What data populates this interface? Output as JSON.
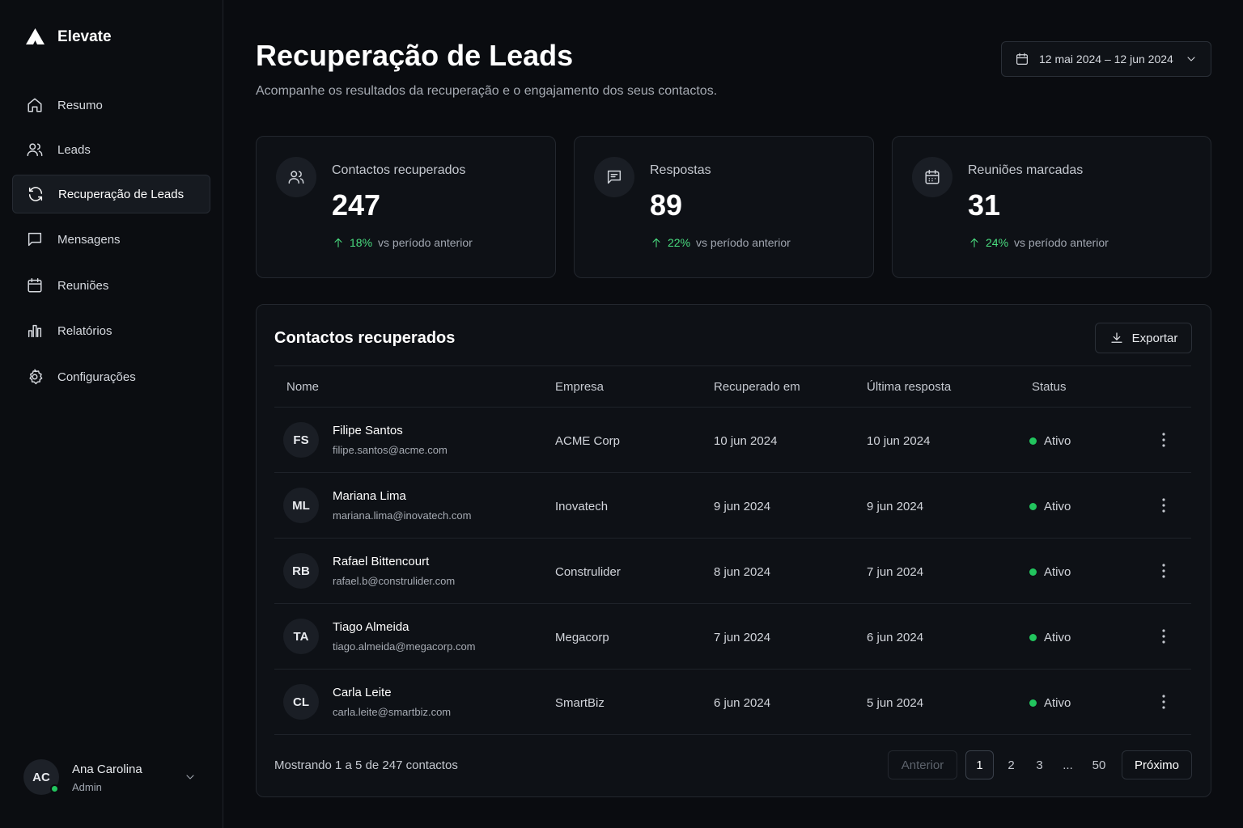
{
  "sidebar": {
    "brand": "Elevate",
    "nav": [
      {
        "label": "Resumo"
      },
      {
        "label": "Leads"
      },
      {
        "label": "Recuperação de Leads",
        "active": true
      },
      {
        "label": "Mensagens"
      },
      {
        "label": "Reuniões"
      },
      {
        "label": "Relatórios"
      },
      {
        "label": "Configurações"
      }
    ],
    "user": {
      "initials": "AC",
      "name": "Ana Carolina",
      "role": "Admin"
    }
  },
  "header": {
    "title": "Recuperação de Leads",
    "subtitle": "Acompanhe os resultados da recuperação e o engajamento dos seus contactos.",
    "date_range": "12 mai 2024 – 12 jun 2024"
  },
  "stats": [
    {
      "label": "Contactos recuperados",
      "value": 247,
      "change": "18%",
      "note": "vs período anterior"
    },
    {
      "label": "Respostas",
      "value": 89,
      "change": "22%",
      "note": "vs período anterior"
    },
    {
      "label": "Reuniões marcadas",
      "value": 31,
      "change": "24%",
      "note": "vs período anterior"
    }
  ],
  "table": {
    "title": "Contactos recuperados",
    "export": "Exportar",
    "columns": [
      "Nome",
      "Empresa",
      "Recuperado em",
      "Última resposta",
      "Status"
    ],
    "rows": [
      {
        "initials": "FS",
        "name": "Filipe Santos",
        "email": "filipe.santos@acme.com",
        "company": "ACME Corp",
        "recovered": "10 jun 2024",
        "last_reply": "10 jun 2024",
        "status": "Ativo"
      },
      {
        "initials": "ML",
        "name": "Mariana Lima",
        "email": "mariana.lima@inovatech.com",
        "company": "Inovatech",
        "recovered": "9 jun 2024",
        "last_reply": "9 jun 2024",
        "status": "Ativo"
      },
      {
        "initials": "RB",
        "name": "Rafael Bittencourt",
        "email": "rafael.b@construlider.com",
        "company": "Construlider",
        "recovered": "8 jun 2024",
        "last_reply": "7 jun 2024",
        "status": "Ativo"
      },
      {
        "initials": "TA",
        "name": "Tiago Almeida",
        "email": "tiago.almeida@megacorp.com",
        "company": "Megacorp",
        "recovered": "7 jun 2024",
        "last_reply": "6 jun 2024",
        "status": "Ativo"
      },
      {
        "initials": "CL",
        "name": "Carla Leite",
        "email": "carla.leite@smartbiz.com",
        "company": "SmartBiz",
        "recovered": "6 jun 2024",
        "last_reply": "5 jun 2024",
        "status": "Ativo"
      }
    ],
    "footer": {
      "summary": "Mostrando 1 a 5 de 247 contactos",
      "prev": "Anterior",
      "pages": [
        "1",
        "2",
        "3",
        "...",
        "50"
      ],
      "current_page": 0,
      "next": "Próximo"
    }
  }
}
